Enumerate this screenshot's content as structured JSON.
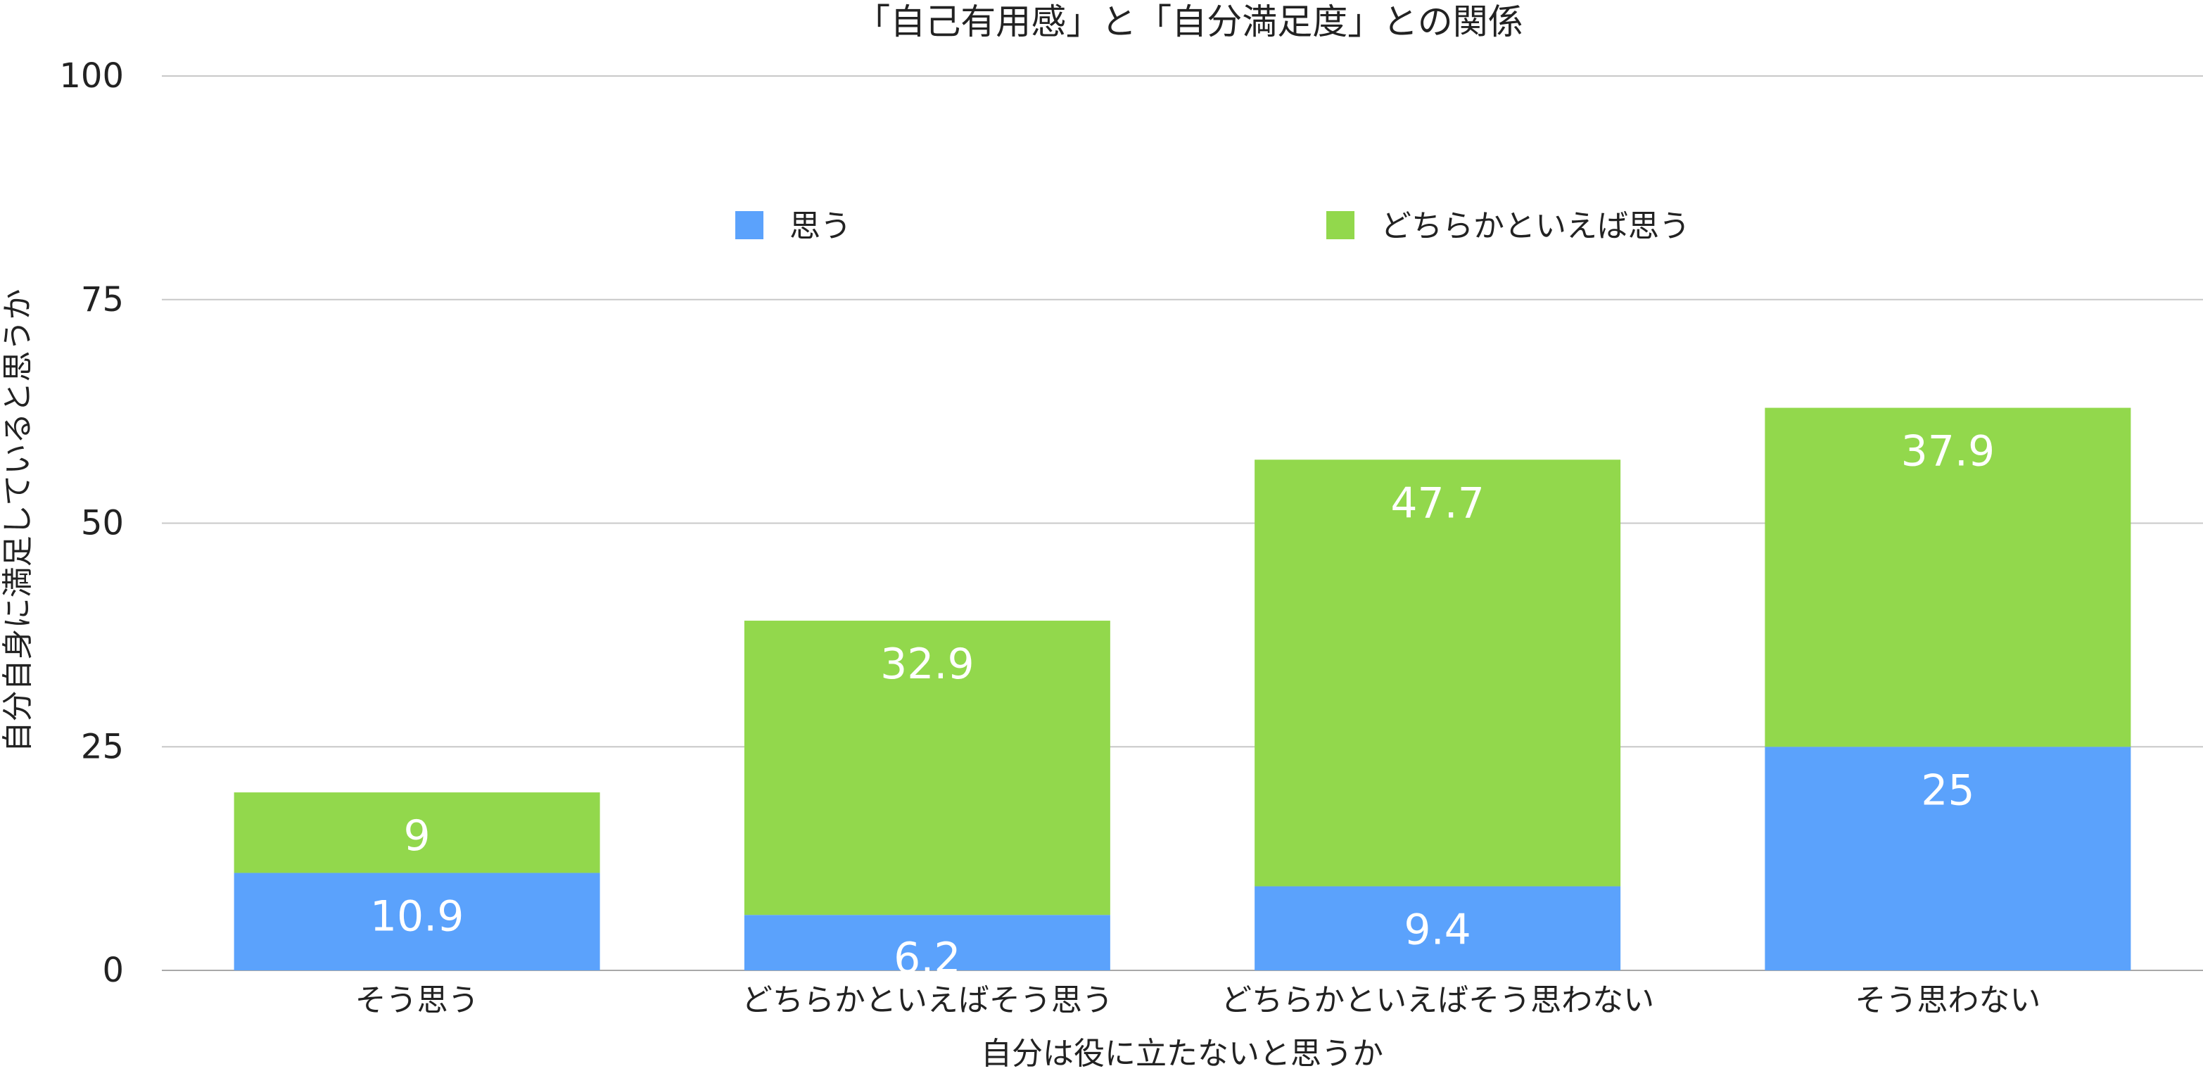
{
  "chart_data": {
    "type": "bar",
    "stacked": true,
    "title": "「自己有用感」と「自分満足度」との関係",
    "xlabel": "自分は役に立たないと思うか",
    "ylabel": "自分自身に満足していると思うか",
    "ylim": [
      0,
      100
    ],
    "yticks": [
      "0",
      "25",
      "50",
      "75",
      "100"
    ],
    "ytick_values": [
      0,
      25,
      50,
      75,
      100
    ],
    "grid": true,
    "legend_position": "top",
    "categories": [
      "そう思う",
      "どちらかといえばそう思う",
      "どちらかといえばそう思わない",
      "そう思わない"
    ],
    "series": [
      {
        "name": "思う",
        "color": "#5ba2fc",
        "values": [
          10.9,
          6.2,
          9.4,
          25
        ]
      },
      {
        "name": "どちらかといえば思う",
        "color": "#92d84c",
        "values": [
          9,
          32.9,
          47.7,
          37.9
        ]
      }
    ],
    "data_labels": [
      [
        "10.9",
        "6.2",
        "9.4",
        "25"
      ],
      [
        "9",
        "32.9",
        "47.7",
        "37.9"
      ]
    ]
  }
}
